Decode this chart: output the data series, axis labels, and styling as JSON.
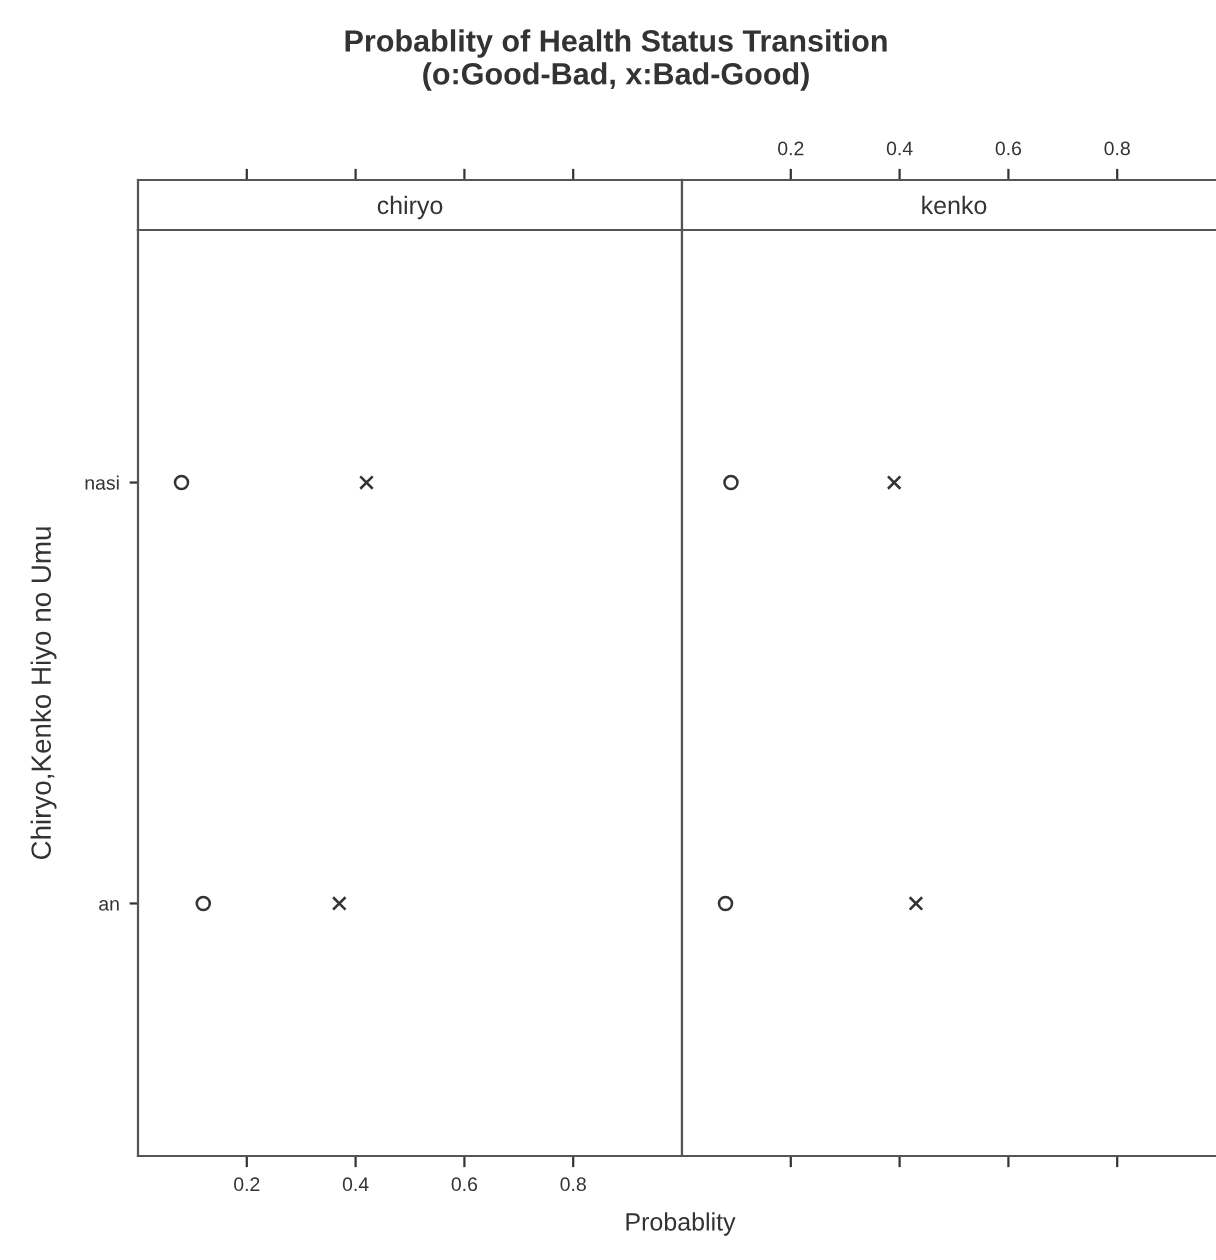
{
  "chart_data": [
    {
      "type": "scatter",
      "title": "Probablity of Health Status Transition\n(o:Good-Bad, x:Bad-Good)",
      "subtitle": "chiryo",
      "xlabel": "Probablity",
      "ylabel": "Chiryo,Kenko Hiyo no Umu",
      "orientation": "horizontal",
      "categories": [
        "nasi",
        "an"
      ],
      "series": [
        {
          "color": "#333333",
          "marker": "circle",
          "values": [
            0.08,
            0.12
          ]
        },
        {
          "color": "#333333",
          "marker": "cross",
          "values": [
            0.42,
            0.37
          ]
        }
      ],
      "xlim": [
        0,
        1.0
      ],
      "xticks": [
        0.2,
        0.4,
        0.6,
        0.8
      ],
      "grid": false,
      "legend": false
    },
    {
      "type": "scatter",
      "subtitle": "kenko",
      "orientation": "horizontal",
      "categories": [
        null,
        null
      ],
      "series": [
        {
          "color": "#333333",
          "marker": "circle",
          "axis": "x2",
          "values": [
            0.09,
            0.08
          ]
        },
        {
          "color": "#333333",
          "marker": "cross",
          "axis": "x2",
          "values": [
            0.39,
            0.43
          ]
        }
      ],
      "x2lim": [
        0,
        1.0
      ],
      "x2ticks": [
        0.2,
        0.4,
        0.6,
        0.8
      ],
      "grid": false,
      "legend": false
    }
  ]
}
